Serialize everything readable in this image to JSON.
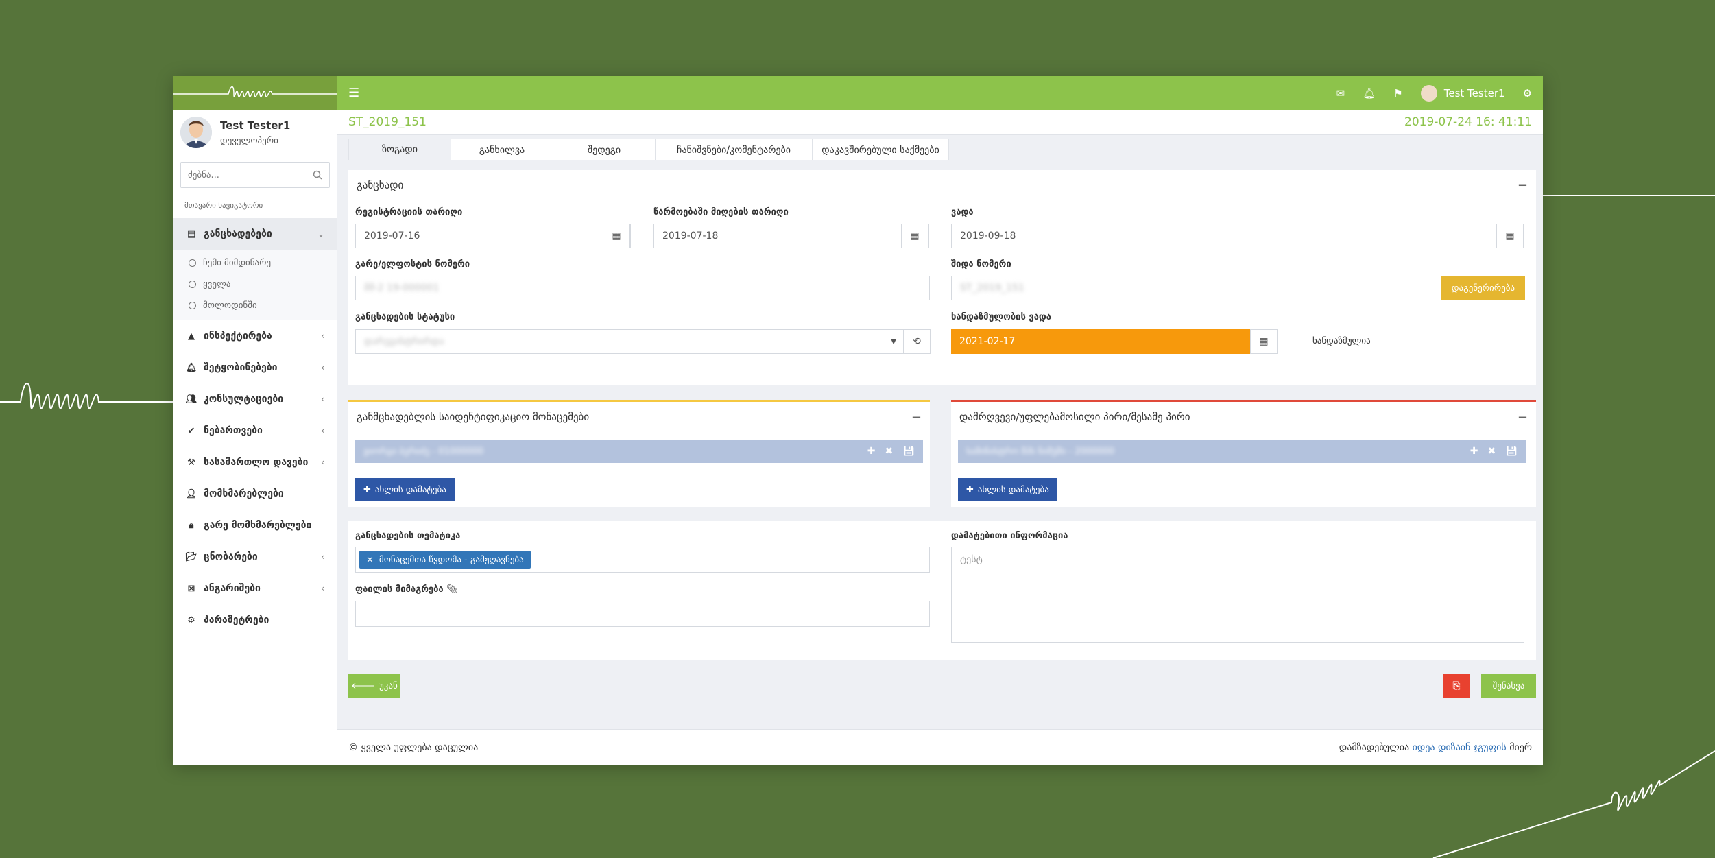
{
  "sidebar": {
    "user_name": "Test Tester1",
    "user_role": "დეველოპერი",
    "search_placeholder": "ძებნა...",
    "nav_caption": "მთავარი ნავიგატორი",
    "items": [
      {
        "label": "განცხადებები",
        "icon": "table-icon",
        "active": true,
        "children": [
          "ჩემი მიმდინარე",
          "ყველა",
          "მოლოდინში"
        ]
      },
      {
        "label": "ინსპექტირება",
        "icon": "warning-icon"
      },
      {
        "label": "შეტყობინებები",
        "icon": "bell-icon"
      },
      {
        "label": "კონსულტაციები",
        "icon": "users-icon"
      },
      {
        "label": "ნებართვები",
        "icon": "check-circle-icon"
      },
      {
        "label": "სასამართლო დავები",
        "icon": "gavel-icon"
      },
      {
        "label": "მომხმარებლები",
        "icon": "user-icon"
      },
      {
        "label": "გარე მომხმარებლები",
        "icon": "user-lock-icon"
      },
      {
        "label": "ცნობარები",
        "icon": "folder-icon"
      },
      {
        "label": "ანგარიშები",
        "icon": "file-excel-icon"
      },
      {
        "label": "პარამეტრები",
        "icon": "gear-icon"
      }
    ]
  },
  "topbar": {
    "user_name": "Test Tester1"
  },
  "case": {
    "id": "ST_2019_151",
    "timestamp": "2019-07-24 16: 41:11"
  },
  "tabs": [
    "ზოგადი",
    "განხილვა",
    "შედეგი",
    "ჩანიშვნები/კომენტარები",
    "დაკავშირებული საქმეები"
  ],
  "application": {
    "title": "განცხადი",
    "reg_date_label": "რეგისტრაციის თარიღი",
    "reg_date": "2019-07-16",
    "proceed_date_label": "წარმოებაში მიღების თარიღი",
    "proceed_date": "2019-07-18",
    "deadline_label": "ვადა",
    "deadline": "2019-09-18",
    "ext_number_label": "გარე/ელფოსტის ნომერი",
    "ext_number": "მმ-2 19-000001",
    "int_number_label": "შიდა ნომერი",
    "int_number": "ST_2019_151",
    "generate_button": "დაგენერირება",
    "status_label": "განცხადების სტატუსი",
    "status": "დარეგისტრირდა",
    "limitation_label": "ხანდაზმულობის ვადა",
    "limitation_date": "2021-02-17",
    "limitation_checkbox": "ხანდაზმულია"
  },
  "applicant": {
    "title": "განმცხადებლის საიდენტიფიკაციო მონაცემები",
    "row": "ვიორგი ბერიძე - 01000000",
    "add_button": "ახლის დამატება"
  },
  "respondent": {
    "title": "დამრღვევი/უფლებამოსილი პირი/მესამე პირი",
    "row": "სამინისტრო შპს ნიმუში - 2000000",
    "add_button": "ახლის დამატება"
  },
  "details": {
    "topic_label": "განცხადების თემატიკა",
    "topic_tag": "მონაცემთა წვდომა - გამჟღავნება",
    "file_label": "ფაილის მიმაგრება",
    "info_label": "დამატებითი ინფორმაცია",
    "info_value": "ტესტ"
  },
  "actions": {
    "back": "უკან",
    "save": "შენახვა"
  },
  "footer": {
    "copyright": "© ყველა უფლება დაცულია",
    "made_by_prefix": "დამზადებულია",
    "made_by_link": "იდეა დიზაინ ჯგუფის",
    "made_by_suffix": "მიერ"
  }
}
